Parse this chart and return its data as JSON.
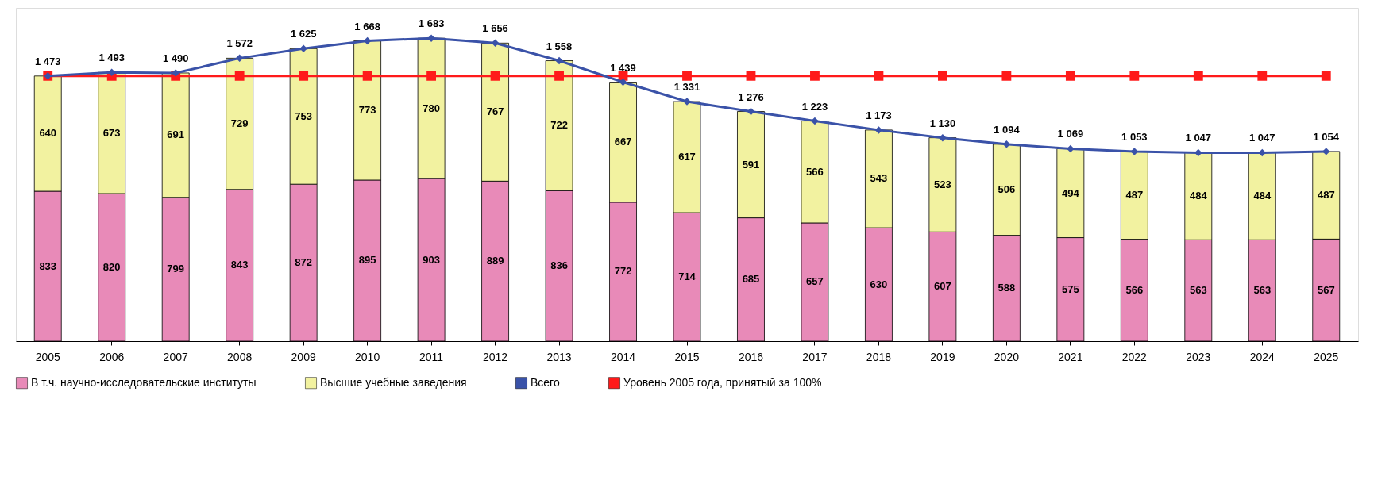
{
  "chart_data": {
    "type": "bar",
    "stacked": true,
    "data_labels": true,
    "legend": "bottom",
    "categories": [
      "2005",
      "2006",
      "2007",
      "2008",
      "2009",
      "2010",
      "2011",
      "2012",
      "2013",
      "2014",
      "2015",
      "2016",
      "2017",
      "2018",
      "2019",
      "2020",
      "2021",
      "2022",
      "2023",
      "2024",
      "2025"
    ],
    "series": [
      {
        "name": "В т.ч. научно-исследовательские институты",
        "color": "#e88ab8",
        "values": [
          833,
          820,
          799,
          843,
          872,
          895,
          903,
          889,
          836,
          772,
          714,
          685,
          657,
          630,
          607,
          588,
          575,
          566,
          563,
          563,
          567
        ]
      },
      {
        "name": "Высшие учебные заведения",
        "color": "#f2f2a0",
        "values": [
          640,
          673,
          691,
          729,
          753,
          773,
          780,
          767,
          722,
          667,
          617,
          591,
          566,
          543,
          523,
          506,
          494,
          487,
          484,
          484,
          487
        ]
      },
      {
        "name": "Всего",
        "type": "line",
        "color": "#3a52a8",
        "marker": "diamond",
        "line_style": "solid",
        "values": [
          1473,
          1493,
          1490,
          1572,
          1625,
          1668,
          1683,
          1656,
          1558,
          1439,
          1331,
          1276,
          1223,
          1173,
          1130,
          1094,
          1069,
          1053,
          1047,
          1047,
          1054
        ],
        "value_labels": [
          "1 473",
          "1 493",
          "1 490",
          "1 572",
          "1 625",
          "1 668",
          "1 683",
          "1 656",
          "1 558",
          "1 439",
          "1 331",
          "1 276",
          "1 223",
          "1 173",
          "1 130",
          "1 094",
          "1 069",
          "1 053",
          "1 047",
          "1 047",
          "1 054"
        ]
      },
      {
        "name": "Уровень 2005 года, принятый за 100%",
        "type": "line",
        "color": "#ff1a1a",
        "marker": "square",
        "line_style": "solid",
        "values": [
          1473,
          1473,
          1473,
          1473,
          1473,
          1473,
          1473,
          1473,
          1473,
          1473,
          1473,
          1473,
          1473,
          1473,
          1473,
          1473,
          1473,
          1473,
          1473,
          1473,
          1473
        ],
        "value_labels": [
          null,
          null,
          null,
          null,
          null,
          null,
          null,
          null,
          null,
          null,
          null,
          null,
          null,
          null,
          null,
          null,
          null,
          null,
          null,
          null,
          null
        ]
      }
    ]
  }
}
